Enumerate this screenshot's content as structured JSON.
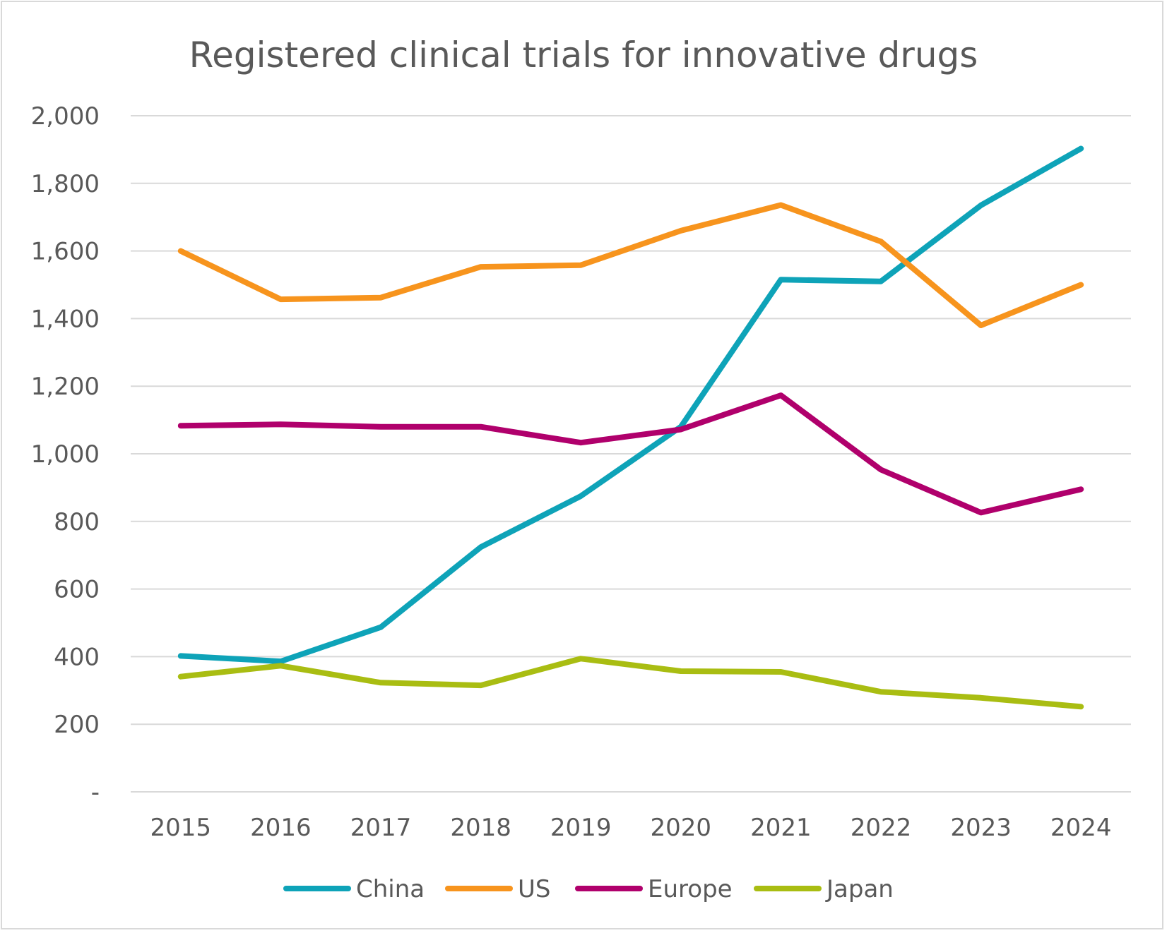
{
  "chart_data": {
    "type": "line",
    "title": "Registered clinical trials for innovative drugs",
    "xlabel": "",
    "ylabel": "",
    "categories": [
      "2015",
      "2016",
      "2017",
      "2018",
      "2019",
      "2020",
      "2021",
      "2022",
      "2023",
      "2024"
    ],
    "ylim": [
      0,
      2000
    ],
    "yticks": [
      0,
      200,
      400,
      600,
      800,
      1000,
      1200,
      1400,
      1600,
      1800,
      2000
    ],
    "ytick_labels": [
      "-",
      "200",
      "400",
      "600",
      "800",
      "1,000",
      "1,200",
      "1,400",
      "1,600",
      "1,800",
      "2,000"
    ],
    "grid": true,
    "legend_position": "bottom",
    "series": [
      {
        "name": "China",
        "color": "#0ea3b8",
        "values": [
          402,
          386,
          487,
          724,
          875,
          1080,
          1515,
          1510,
          1735,
          1903
        ]
      },
      {
        "name": "US",
        "color": "#f7941d",
        "values": [
          1600,
          1457,
          1462,
          1553,
          1558,
          1660,
          1736,
          1628,
          1380,
          1500
        ]
      },
      {
        "name": "Europe",
        "color": "#b0006c",
        "values": [
          1083,
          1087,
          1080,
          1080,
          1033,
          1072,
          1173,
          953,
          826,
          895
        ]
      },
      {
        "name": "Japan",
        "color": "#a9bd12",
        "values": [
          341,
          373,
          323,
          315,
          394,
          357,
          355,
          296,
          278,
          252
        ]
      }
    ]
  }
}
